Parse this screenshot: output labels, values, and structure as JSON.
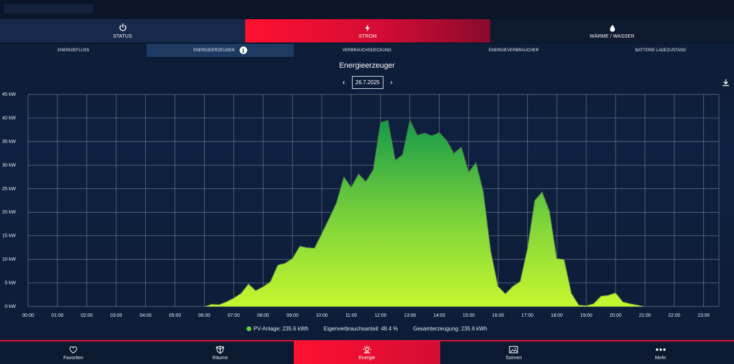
{
  "main_tabs": [
    {
      "label": "STATUS",
      "icon": "power-icon"
    },
    {
      "label": "STROM",
      "icon": "bolt-icon",
      "active": true
    },
    {
      "label": "WÄRME / WASSER",
      "icon": "drop-icon"
    }
  ],
  "sub_tabs": [
    {
      "label": "ENERGIEFLUSS"
    },
    {
      "label": "ENERGIEERZEUGER",
      "active": true
    },
    {
      "label": "VERBRAUCHSDECKUNG"
    },
    {
      "label": "ENERGIEVERBRAUCHER"
    },
    {
      "label": "BATTERIE LADEZUSTAND"
    }
  ],
  "page": {
    "title": "Energieerzeuger",
    "date": "26.7.2025",
    "prev": "‹",
    "next": "›"
  },
  "colors": {
    "accent": "#e8143a",
    "area_top": "#169a4a",
    "area_bottom": "#c6f72f",
    "line": "#4f7a4b"
  },
  "chart_data": {
    "type": "area",
    "y_ticks": [
      "0 kW",
      "5 kW",
      "10 kW",
      "15 kW",
      "20 kW",
      "25 kW",
      "30 kW",
      "35 kW",
      "40 kW",
      "45 kW"
    ],
    "x_ticks": [
      "00:00",
      "01:00",
      "02:00",
      "03:00",
      "04:00",
      "05:00",
      "06:00",
      "07:00",
      "08:00",
      "09:00",
      "10:00",
      "11:00",
      "12:00",
      "13:00",
      "14:00",
      "15:00",
      "16:00",
      "17:00",
      "18:00",
      "19:00",
      "20:00",
      "21:00",
      "22:00",
      "23:00"
    ],
    "ylim": [
      0,
      45
    ],
    "xlim": [
      0,
      23.5
    ],
    "grid": true,
    "series": [
      {
        "name": "PV-Anlage",
        "points": [
          [
            6.0,
            0
          ],
          [
            6.25,
            0.5
          ],
          [
            6.5,
            0.4
          ],
          [
            6.75,
            1.0
          ],
          [
            7.0,
            1.8
          ],
          [
            7.25,
            2.8
          ],
          [
            7.5,
            4.8
          ],
          [
            7.75,
            3.4
          ],
          [
            8.0,
            4.2
          ],
          [
            8.25,
            5.3
          ],
          [
            8.5,
            8.8
          ],
          [
            8.75,
            9.2
          ],
          [
            9.0,
            10.2
          ],
          [
            9.25,
            12.8
          ],
          [
            9.5,
            12.5
          ],
          [
            9.75,
            12.4
          ],
          [
            10.0,
            15.5
          ],
          [
            10.25,
            18.7
          ],
          [
            10.5,
            22.0
          ],
          [
            10.75,
            27.5
          ],
          [
            11.0,
            25.3
          ],
          [
            11.25,
            28.1
          ],
          [
            11.5,
            26.5
          ],
          [
            11.75,
            29.0
          ],
          [
            12.0,
            39.0
          ],
          [
            12.25,
            39.5
          ],
          [
            12.5,
            31.0
          ],
          [
            12.75,
            32.2
          ],
          [
            13.0,
            39.5
          ],
          [
            13.25,
            36.3
          ],
          [
            13.5,
            36.8
          ],
          [
            13.75,
            36.2
          ],
          [
            14.0,
            36.9
          ],
          [
            14.25,
            35.2
          ],
          [
            14.5,
            32.5
          ],
          [
            14.75,
            33.8
          ],
          [
            15.0,
            28.5
          ],
          [
            15.25,
            30.5
          ],
          [
            15.5,
            24.3
          ],
          [
            15.75,
            11.8
          ],
          [
            16.0,
            4.3
          ],
          [
            16.25,
            2.7
          ],
          [
            16.5,
            4.3
          ],
          [
            16.75,
            5.3
          ],
          [
            17.0,
            12.3
          ],
          [
            17.25,
            22.5
          ],
          [
            17.5,
            24.3
          ],
          [
            17.75,
            20.2
          ],
          [
            18.0,
            10.2
          ],
          [
            18.25,
            10.0
          ],
          [
            18.5,
            2.8
          ],
          [
            18.75,
            0.3
          ],
          [
            19.0,
            0.2
          ],
          [
            19.25,
            0.6
          ],
          [
            19.5,
            2.2
          ],
          [
            19.75,
            2.4
          ],
          [
            20.0,
            2.9
          ],
          [
            20.25,
            1.0
          ],
          [
            20.5,
            0.6
          ],
          [
            20.75,
            0.3
          ],
          [
            21.0,
            0
          ]
        ]
      }
    ]
  },
  "legend": {
    "pv_label": "PV-Anlage: 235.6 kWh",
    "eigen_label": "Eigenverbrauchsanteil: 48.4 %",
    "gesamt_label": "Gesamterzeugung: 235.6 kWh"
  },
  "bottom_nav": [
    {
      "label": "Favoriten",
      "icon": "heart-icon"
    },
    {
      "label": "Räume",
      "icon": "room-icon"
    },
    {
      "label": "Energie",
      "icon": "energy-icon",
      "active": true
    },
    {
      "label": "Szenen",
      "icon": "image-icon"
    },
    {
      "label": "Mehr",
      "icon": "more-icon"
    }
  ]
}
